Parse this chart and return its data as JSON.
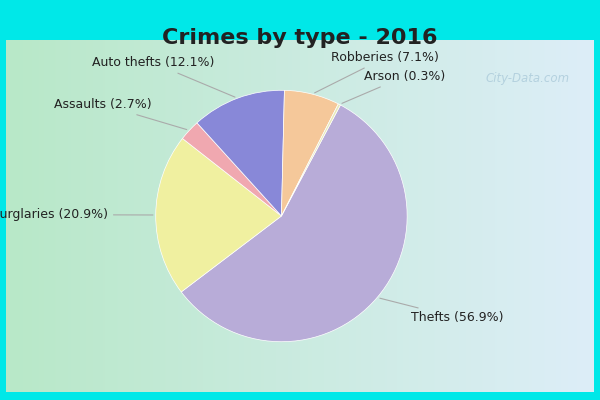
{
  "title": "Crimes by type - 2016",
  "slices": [
    {
      "label": "Thefts",
      "pct": 56.9,
      "color": "#b8acd8"
    },
    {
      "label": "Burglaries",
      "pct": 20.9,
      "color": "#f0f0a0"
    },
    {
      "label": "Assaults",
      "pct": 2.7,
      "color": "#f0a8b0"
    },
    {
      "label": "Auto thefts",
      "pct": 12.1,
      "color": "#8888d8"
    },
    {
      "label": "Robberies",
      "pct": 7.1,
      "color": "#f5c89a"
    },
    {
      "label": "Arson",
      "pct": 0.3,
      "color": "#e8e8b8"
    }
  ],
  "title_fontsize": 16,
  "label_fontsize": 9,
  "bg_border": "#00e8e8",
  "bg_left": "#b8e8c8",
  "bg_right": "#ddeef8",
  "watermark": "City-Data.com",
  "startangle": 62
}
